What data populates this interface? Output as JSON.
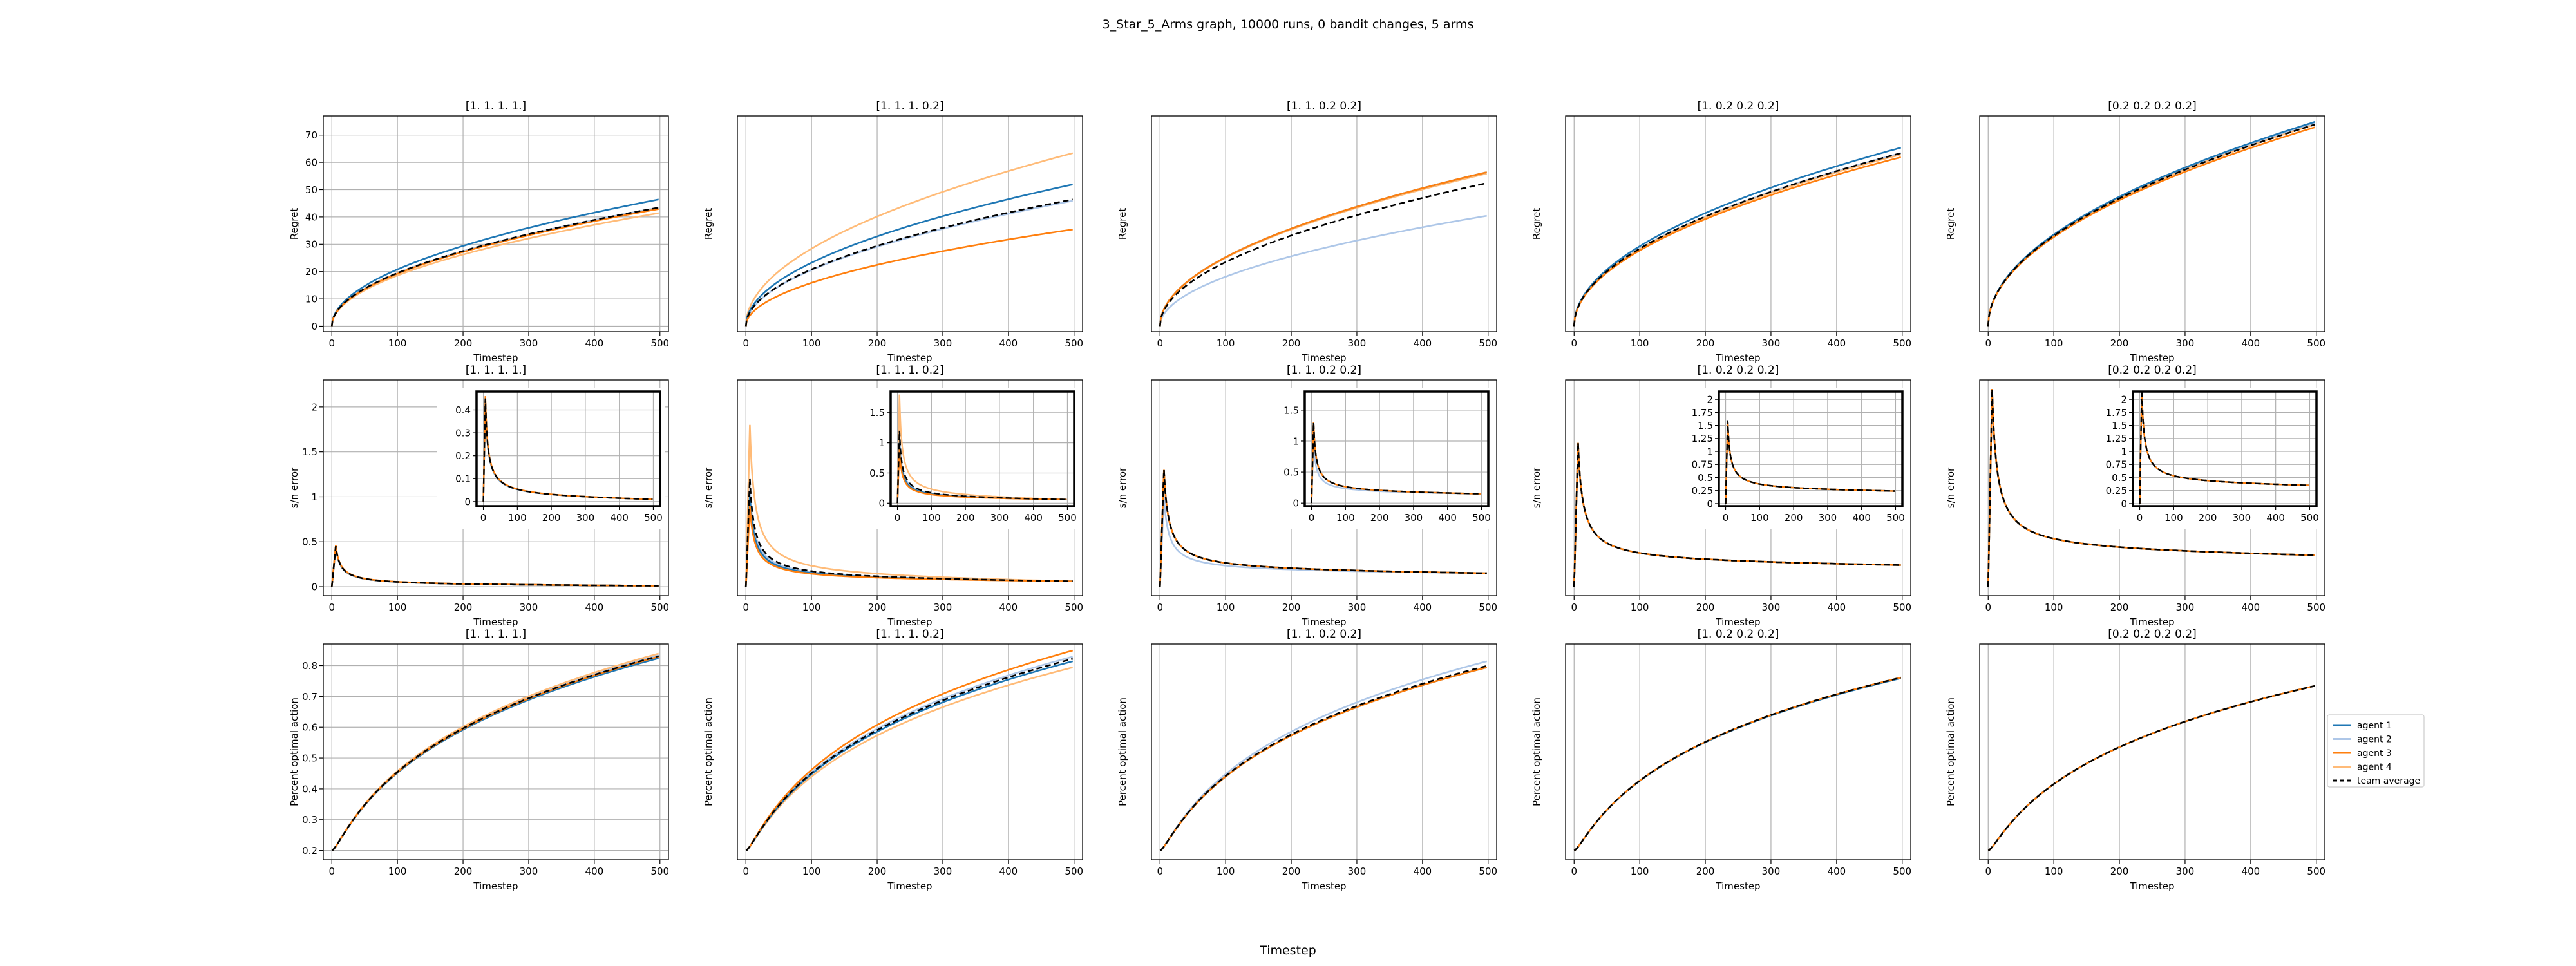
{
  "figure": {
    "suptitle": "3_Star_5_Arms graph, 10000 runs, 0 bandit changes, 5 arms",
    "xlabel": "Timestep"
  },
  "colors": {
    "agent 1": "#1f77b4",
    "agent 2": "#aec7e8",
    "agent 3": "#ff7f0e",
    "agent 4": "#ffbb78",
    "team average": "#000000"
  },
  "legend": {
    "placement": "right of bottom-right panel",
    "entries": [
      {
        "label": "agent 1",
        "color": "#1f77b4",
        "dash": false
      },
      {
        "label": "agent 2",
        "color": "#aec7e8",
        "dash": false
      },
      {
        "label": "agent 3",
        "color": "#ff7f0e",
        "dash": false
      },
      {
        "label": "agent 4",
        "color": "#ffbb78",
        "dash": false
      },
      {
        "label": "team average",
        "color": "#000000",
        "dash": true
      }
    ]
  },
  "chart_data": [
    {
      "type": "line",
      "row": 0,
      "col": 0,
      "title": "[1. 1. 1. 1.]",
      "xlabel": "Timestep",
      "ylabel": "Regret",
      "xlim": [
        -13,
        513
      ],
      "ylim": [
        -2,
        77
      ],
      "xticks": [
        0,
        100,
        200,
        300,
        400,
        500
      ],
      "yticks": [
        0,
        10,
        20,
        30,
        40,
        50,
        60,
        70
      ],
      "curve": "regret",
      "series": [
        {
          "name": "agent 1",
          "color": "#1f77b4",
          "end": 46.5
        },
        {
          "name": "agent 2",
          "color": "#aec7e8",
          "end": 43.5
        },
        {
          "name": "agent 3",
          "color": "#ff7f0e",
          "end": 43
        },
        {
          "name": "agent 4",
          "color": "#ffbb78",
          "end": 41.5
        },
        {
          "name": "team average",
          "color": "#000000",
          "dash": true,
          "end": 43.5
        }
      ]
    },
    {
      "type": "line",
      "row": 0,
      "col": 1,
      "title": "[1.  1.  1.  0.2]",
      "xlabel": "Timestep",
      "ylabel": "Regret",
      "xlim": [
        -13,
        513
      ],
      "ylim": [
        -2,
        77
      ],
      "xticks": [
        0,
        100,
        200,
        300,
        400,
        500
      ],
      "yticks": [],
      "curve": "regret",
      "series": [
        {
          "name": "agent 1",
          "color": "#1f77b4",
          "end": 52
        },
        {
          "name": "agent 2",
          "color": "#aec7e8",
          "end": 46
        },
        {
          "name": "agent 3",
          "color": "#ff7f0e",
          "end": 35.5
        },
        {
          "name": "agent 4",
          "color": "#ffbb78",
          "end": 63.5
        },
        {
          "name": "team average",
          "color": "#000000",
          "dash": true,
          "end": 46.5
        }
      ]
    },
    {
      "type": "line",
      "row": 0,
      "col": 2,
      "title": "[1.  1.  0.2 0.2]",
      "xlabel": "Timestep",
      "ylabel": "Regret",
      "xlim": [
        -13,
        513
      ],
      "ylim": [
        -2,
        77
      ],
      "xticks": [
        0,
        100,
        200,
        300,
        400,
        500
      ],
      "yticks": [],
      "curve": "regret",
      "series": [
        {
          "name": "agent 1",
          "color": "#1f77b4",
          "end": 56.5
        },
        {
          "name": "agent 2",
          "color": "#aec7e8",
          "end": 40.5
        },
        {
          "name": "agent 3",
          "color": "#ff7f0e",
          "end": 56.5
        },
        {
          "name": "agent 4",
          "color": "#ffbb78",
          "end": 56
        },
        {
          "name": "team average",
          "color": "#000000",
          "dash": true,
          "end": 52.5
        }
      ]
    },
    {
      "type": "line",
      "row": 0,
      "col": 3,
      "title": "[1.  0.2 0.2 0.2]",
      "xlabel": "Timestep",
      "ylabel": "Regret",
      "xlim": [
        -13,
        513
      ],
      "ylim": [
        -2,
        77
      ],
      "xticks": [
        0,
        100,
        200,
        300,
        400,
        500
      ],
      "yticks": [],
      "curve": "regret",
      "series": [
        {
          "name": "agent 1",
          "color": "#1f77b4",
          "end": 65.5
        },
        {
          "name": "agent 2",
          "color": "#aec7e8",
          "end": 63.5
        },
        {
          "name": "agent 3",
          "color": "#ff7f0e",
          "end": 62
        },
        {
          "name": "agent 4",
          "color": "#ffbb78",
          "end": 63
        },
        {
          "name": "team average",
          "color": "#000000",
          "dash": true,
          "end": 63.5
        }
      ]
    },
    {
      "type": "line",
      "row": 0,
      "col": 4,
      "title": "[0.2 0.2 0.2 0.2]",
      "xlabel": "Timestep",
      "ylabel": "Regret",
      "xlim": [
        -13,
        513
      ],
      "ylim": [
        -2,
        77
      ],
      "xticks": [
        0,
        100,
        200,
        300,
        400,
        500
      ],
      "yticks": [],
      "curve": "regret",
      "series": [
        {
          "name": "agent 1",
          "color": "#1f77b4",
          "end": 75
        },
        {
          "name": "agent 2",
          "color": "#aec7e8",
          "end": 74.5
        },
        {
          "name": "agent 3",
          "color": "#ff7f0e",
          "end": 73
        },
        {
          "name": "agent 4",
          "color": "#ffbb78",
          "end": 74
        },
        {
          "name": "team average",
          "color": "#000000",
          "dash": true,
          "end": 74
        }
      ]
    },
    {
      "type": "line",
      "row": 1,
      "col": 0,
      "title": "[1. 1. 1. 1.]",
      "xlabel": "Timestep",
      "ylabel": "s/n error",
      "xlim": [
        -13,
        513
      ],
      "ylim": [
        -0.1,
        2.3
      ],
      "xticks": [
        0,
        100,
        200,
        300,
        400,
        500
      ],
      "yticks": [
        0.0,
        0.5,
        1.0,
        1.5,
        2.0
      ],
      "curve": "error",
      "peak": 0.45,
      "tail": 0.01,
      "inset": {
        "ylim": [
          -0.02,
          0.48
        ],
        "yticks": [
          0.0,
          0.1,
          0.2,
          0.3,
          0.4
        ],
        "xticks": [
          0,
          100,
          200,
          300,
          400,
          500
        ],
        "xlim": [
          -20,
          520
        ]
      },
      "series": [
        {
          "name": "agent 1",
          "color": "#1f77b4",
          "peak": 0.45
        },
        {
          "name": "agent 2",
          "color": "#aec7e8",
          "peak": 0.44
        },
        {
          "name": "agent 3",
          "color": "#ff7f0e",
          "peak": 0.46
        },
        {
          "name": "agent 4",
          "color": "#ffbb78",
          "peak": 0.45
        },
        {
          "name": "team average",
          "color": "#000000",
          "dash": true,
          "peak": 0.45
        }
      ]
    },
    {
      "type": "line",
      "row": 1,
      "col": 1,
      "title": "[1.  1.  1.  0.2]",
      "xlabel": "Timestep",
      "ylabel": "s/n error",
      "xlim": [
        -13,
        513
      ],
      "ylim": [
        -0.1,
        2.3
      ],
      "xticks": [
        0,
        100,
        200,
        300,
        400,
        500
      ],
      "yticks": [],
      "curve": "error",
      "tail": 0.06,
      "inset": {
        "ylim": [
          -0.05,
          1.85
        ],
        "yticks": [
          0.0,
          0.5,
          1.0,
          1.5
        ],
        "xticks": [
          0,
          100,
          200,
          300,
          400,
          500
        ],
        "xlim": [
          -20,
          520
        ]
      },
      "series": [
        {
          "name": "agent 1",
          "color": "#1f77b4",
          "peak": 1.0
        },
        {
          "name": "agent 2",
          "color": "#aec7e8",
          "peak": 1.1
        },
        {
          "name": "agent 3",
          "color": "#ff7f0e",
          "peak": 0.9
        },
        {
          "name": "agent 4",
          "color": "#ffbb78",
          "peak": 1.8
        },
        {
          "name": "team average",
          "color": "#000000",
          "dash": true,
          "peak": 1.2
        }
      ]
    },
    {
      "type": "line",
      "row": 1,
      "col": 2,
      "title": "[1.  1.  0.2 0.2]",
      "xlabel": "Timestep",
      "ylabel": "s/n error",
      "xlim": [
        -13,
        513
      ],
      "ylim": [
        -0.1,
        2.3
      ],
      "xticks": [
        0,
        100,
        200,
        300,
        400,
        500
      ],
      "yticks": [],
      "curve": "error",
      "tail": 0.15,
      "inset": {
        "ylim": [
          -0.05,
          1.8
        ],
        "yticks": [
          0.0,
          0.5,
          1.0,
          1.5
        ],
        "xticks": [
          0,
          100,
          200,
          300,
          400,
          500
        ],
        "xlim": [
          -20,
          520
        ]
      },
      "series": [
        {
          "name": "agent 1",
          "color": "#1f77b4",
          "peak": 1.3
        },
        {
          "name": "agent 2",
          "color": "#aec7e8",
          "peak": 1.0
        },
        {
          "name": "agent 3",
          "color": "#ff7f0e",
          "peak": 1.3
        },
        {
          "name": "agent 4",
          "color": "#ffbb78",
          "peak": 1.3
        },
        {
          "name": "team average",
          "color": "#000000",
          "dash": true,
          "peak": 1.3
        }
      ]
    },
    {
      "type": "line",
      "row": 1,
      "col": 3,
      "title": "[1.  0.2 0.2 0.2]",
      "xlabel": "Timestep",
      "ylabel": "s/n error",
      "xlim": [
        -13,
        513
      ],
      "ylim": [
        -0.1,
        2.3
      ],
      "xticks": [
        0,
        100,
        200,
        300,
        400,
        500
      ],
      "yticks": [],
      "curve": "error",
      "tail": 0.24,
      "inset": {
        "ylim": [
          -0.05,
          2.15
        ],
        "yticks": [
          0.0,
          0.25,
          0.5,
          0.75,
          1.0,
          1.25,
          1.5,
          1.75,
          2.0
        ],
        "xticks": [
          0,
          100,
          200,
          300,
          400,
          500
        ],
        "xlim": [
          -20,
          520
        ]
      },
      "series": [
        {
          "name": "agent 1",
          "color": "#1f77b4",
          "peak": 1.6
        },
        {
          "name": "agent 2",
          "color": "#aec7e8",
          "peak": 1.6
        },
        {
          "name": "agent 3",
          "color": "#ff7f0e",
          "peak": 1.6
        },
        {
          "name": "agent 4",
          "color": "#ffbb78",
          "peak": 1.6
        },
        {
          "name": "team average",
          "color": "#000000",
          "dash": true,
          "peak": 1.6
        }
      ]
    },
    {
      "type": "line",
      "row": 1,
      "col": 4,
      "title": "[0.2 0.2 0.2 0.2]",
      "xlabel": "Timestep",
      "ylabel": "s/n error",
      "xlim": [
        -13,
        513
      ],
      "ylim": [
        -0.1,
        2.3
      ],
      "xticks": [
        0,
        100,
        200,
        300,
        400,
        500
      ],
      "yticks": [],
      "curve": "error",
      "tail": 0.35,
      "inset": {
        "ylim": [
          -0.05,
          2.15
        ],
        "yticks": [
          0.0,
          0.25,
          0.5,
          0.75,
          1.0,
          1.25,
          1.5,
          1.75,
          2.0
        ],
        "xticks": [
          0,
          100,
          200,
          300,
          400,
          500
        ],
        "xlim": [
          -20,
          520
        ]
      },
      "series": [
        {
          "name": "agent 1",
          "color": "#1f77b4",
          "peak": 2.2
        },
        {
          "name": "agent 2",
          "color": "#aec7e8",
          "peak": 2.2
        },
        {
          "name": "agent 3",
          "color": "#ff7f0e",
          "peak": 2.2
        },
        {
          "name": "agent 4",
          "color": "#ffbb78",
          "peak": 2.2
        },
        {
          "name": "team average",
          "color": "#000000",
          "dash": true,
          "peak": 2.2
        }
      ]
    },
    {
      "type": "line",
      "row": 2,
      "col": 0,
      "title": "[1. 1. 1. 1.]",
      "xlabel": "Timestep",
      "ylabel": "Percent optimal action",
      "xlim": [
        -13,
        513
      ],
      "ylim": [
        0.17,
        0.87
      ],
      "xticks": [
        0,
        100,
        200,
        300,
        400,
        500
      ],
      "yticks": [
        0.2,
        0.3,
        0.4,
        0.5,
        0.6,
        0.7,
        0.8
      ],
      "curve": "optimal",
      "series": [
        {
          "name": "agent 1",
          "color": "#1f77b4",
          "end": 0.825
        },
        {
          "name": "agent 2",
          "color": "#aec7e8",
          "end": 0.835
        },
        {
          "name": "agent 3",
          "color": "#ff7f0e",
          "end": 0.83
        },
        {
          "name": "agent 4",
          "color": "#ffbb78",
          "end": 0.84
        },
        {
          "name": "team average",
          "color": "#000000",
          "dash": true,
          "end": 0.832
        }
      ]
    },
    {
      "type": "line",
      "row": 2,
      "col": 1,
      "title": "[1.  1.  1.  0.2]",
      "xlabel": "Timestep",
      "ylabel": "Percent optimal action",
      "xlim": [
        -13,
        513
      ],
      "ylim": [
        0.17,
        0.87
      ],
      "xticks": [
        0,
        100,
        200,
        300,
        400,
        500
      ],
      "yticks": [],
      "curve": "optimal",
      "series": [
        {
          "name": "agent 1",
          "color": "#1f77b4",
          "end": 0.815
        },
        {
          "name": "agent 2",
          "color": "#aec7e8",
          "end": 0.83
        },
        {
          "name": "agent 3",
          "color": "#ff7f0e",
          "end": 0.85
        },
        {
          "name": "agent 4",
          "color": "#ffbb78",
          "end": 0.795
        },
        {
          "name": "team average",
          "color": "#000000",
          "dash": true,
          "end": 0.823
        }
      ]
    },
    {
      "type": "line",
      "row": 2,
      "col": 2,
      "title": "[1.  1.  0.2 0.2]",
      "xlabel": "Timestep",
      "ylabel": "Percent optimal action",
      "xlim": [
        -13,
        513
      ],
      "ylim": [
        0.17,
        0.87
      ],
      "xticks": [
        0,
        100,
        200,
        300,
        400,
        500
      ],
      "yticks": [],
      "curve": "optimal",
      "series": [
        {
          "name": "agent 1",
          "color": "#1f77b4",
          "end": 0.795
        },
        {
          "name": "agent 2",
          "color": "#aec7e8",
          "end": 0.815
        },
        {
          "name": "agent 3",
          "color": "#ff7f0e",
          "end": 0.795
        },
        {
          "name": "agent 4",
          "color": "#ffbb78",
          "end": 0.795
        },
        {
          "name": "team average",
          "color": "#000000",
          "dash": true,
          "end": 0.8
        }
      ]
    },
    {
      "type": "line",
      "row": 2,
      "col": 3,
      "title": "[1.  0.2 0.2 0.2]",
      "xlabel": "Timestep",
      "ylabel": "Percent optimal action",
      "xlim": [
        -13,
        513
      ],
      "ylim": [
        0.17,
        0.87
      ],
      "xticks": [
        0,
        100,
        200,
        300,
        400,
        500
      ],
      "yticks": [],
      "curve": "optimal",
      "series": [
        {
          "name": "agent 1",
          "color": "#1f77b4",
          "end": 0.76
        },
        {
          "name": "agent 2",
          "color": "#aec7e8",
          "end": 0.762
        },
        {
          "name": "agent 3",
          "color": "#ff7f0e",
          "end": 0.762
        },
        {
          "name": "agent 4",
          "color": "#ffbb78",
          "end": 0.762
        },
        {
          "name": "team average",
          "color": "#000000",
          "dash": true,
          "end": 0.762
        }
      ]
    },
    {
      "type": "line",
      "row": 2,
      "col": 4,
      "title": "[0.2 0.2 0.2 0.2]",
      "xlabel": "Timestep",
      "ylabel": "Percent optimal action",
      "xlim": [
        -13,
        513
      ],
      "ylim": [
        0.17,
        0.87
      ],
      "xticks": [
        0,
        100,
        200,
        300,
        400,
        500
      ],
      "yticks": [],
      "curve": "optimal",
      "series": [
        {
          "name": "agent 1",
          "color": "#1f77b4",
          "end": 0.735
        },
        {
          "name": "agent 2",
          "color": "#aec7e8",
          "end": 0.735
        },
        {
          "name": "agent 3",
          "color": "#ff7f0e",
          "end": 0.735
        },
        {
          "name": "agent 4",
          "color": "#ffbb78",
          "end": 0.735
        },
        {
          "name": "team average",
          "color": "#000000",
          "dash": true,
          "end": 0.735
        }
      ]
    }
  ]
}
